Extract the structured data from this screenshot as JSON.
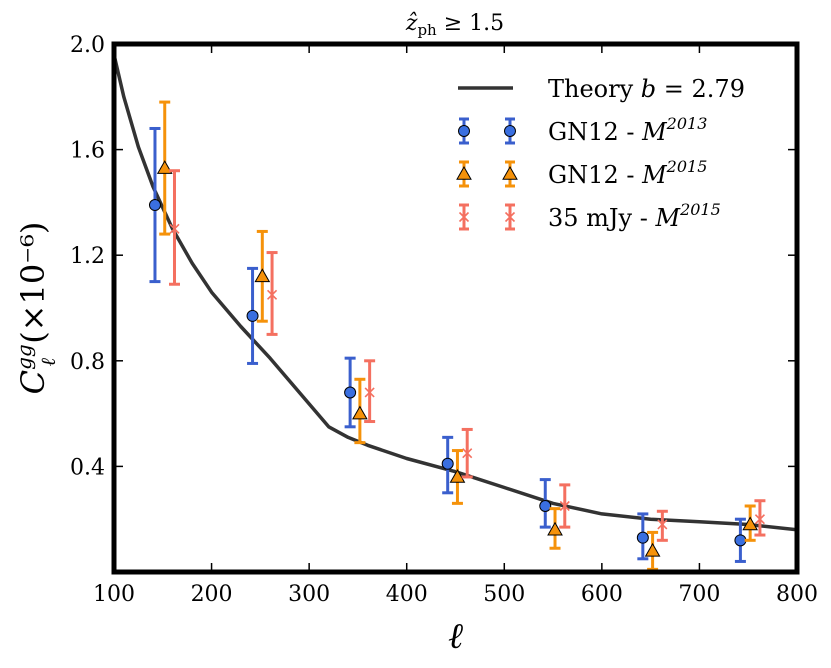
{
  "chart_data": {
    "type": "scatter",
    "title": "ẑ_ph ≥ 1.5",
    "title_display": {
      "base": "ẑ",
      "sub": "ph",
      "rest": " ≥ 1.5"
    },
    "xlabel": "ℓ",
    "ylabel": "C_ℓ^gg (×10⁻⁶)",
    "ylabel_display": {
      "base": "C",
      "sup": "gg",
      "sub": "ℓ",
      "rest": " (×10⁻⁶)"
    },
    "xlim": [
      100,
      800
    ],
    "ylim": [
      0.0,
      2.0
    ],
    "xticks": [
      100,
      200,
      300,
      400,
      500,
      600,
      700,
      800
    ],
    "yticks": [
      0.4,
      0.8,
      1.2,
      1.6,
      2.0
    ],
    "ytick_labels": [
      "0.4",
      "0.8",
      "1.2",
      "1.6",
      "2.0"
    ],
    "legend_position": "top-right",
    "theory": {
      "name": "Theory b = 2.79",
      "label_parts": {
        "text": "Theory ",
        "math": "b",
        "rest": " = 2.79"
      },
      "color": "#333333",
      "x": [
        100,
        110,
        125,
        140,
        160,
        180,
        200,
        230,
        260,
        290,
        320,
        340,
        360,
        400,
        450,
        500,
        550,
        600,
        650,
        700,
        750,
        800
      ],
      "y": [
        1.96,
        1.8,
        1.61,
        1.46,
        1.3,
        1.17,
        1.06,
        0.93,
        0.81,
        0.68,
        0.55,
        0.51,
        0.48,
        0.43,
        0.38,
        0.32,
        0.26,
        0.22,
        0.2,
        0.19,
        0.18,
        0.16
      ]
    },
    "series": [
      {
        "name": "GN12 - M^2013",
        "label_parts": {
          "text": "GN12 - ",
          "math": "M",
          "sup": "2013"
        },
        "marker": "circle",
        "color": "#3a5fcd",
        "marker_fill": "#3a6fe0",
        "x": [
          142,
          242,
          342,
          442,
          542,
          642,
          742
        ],
        "y": [
          1.39,
          0.97,
          0.68,
          0.41,
          0.25,
          0.13,
          0.12
        ],
        "yerr_low": [
          1.1,
          0.79,
          0.55,
          0.3,
          0.17,
          0.05,
          0.04
        ],
        "yerr_high": [
          1.68,
          1.15,
          0.81,
          0.51,
          0.35,
          0.22,
          0.2
        ]
      },
      {
        "name": "GN12 - M^2015",
        "label_parts": {
          "text": "GN12 - ",
          "math": "M",
          "sup": "2015"
        },
        "marker": "triangle",
        "color": "#f5920a",
        "marker_fill": "#f5920a",
        "x": [
          152,
          252,
          352,
          452,
          552,
          652,
          752
        ],
        "y": [
          1.53,
          1.12,
          0.6,
          0.36,
          0.16,
          0.08,
          0.18
        ],
        "yerr_low": [
          1.28,
          0.95,
          0.49,
          0.26,
          0.09,
          0.01,
          0.12
        ],
        "yerr_high": [
          1.78,
          1.29,
          0.73,
          0.46,
          0.24,
          0.15,
          0.25
        ]
      },
      {
        "name": "35 mJy - M^2015",
        "label_parts": {
          "text": "35 mJy - ",
          "math": "M",
          "sup": "2015"
        },
        "marker": "x",
        "color": "#f47060",
        "marker_fill": "#f47060",
        "x": [
          162,
          262,
          362,
          462,
          562,
          662,
          762
        ],
        "y": [
          1.3,
          1.05,
          0.68,
          0.45,
          0.25,
          0.18,
          0.2
        ],
        "yerr_low": [
          1.09,
          0.9,
          0.57,
          0.36,
          0.17,
          0.12,
          0.14
        ],
        "yerr_high": [
          1.52,
          1.21,
          0.8,
          0.54,
          0.33,
          0.23,
          0.27
        ]
      }
    ]
  }
}
